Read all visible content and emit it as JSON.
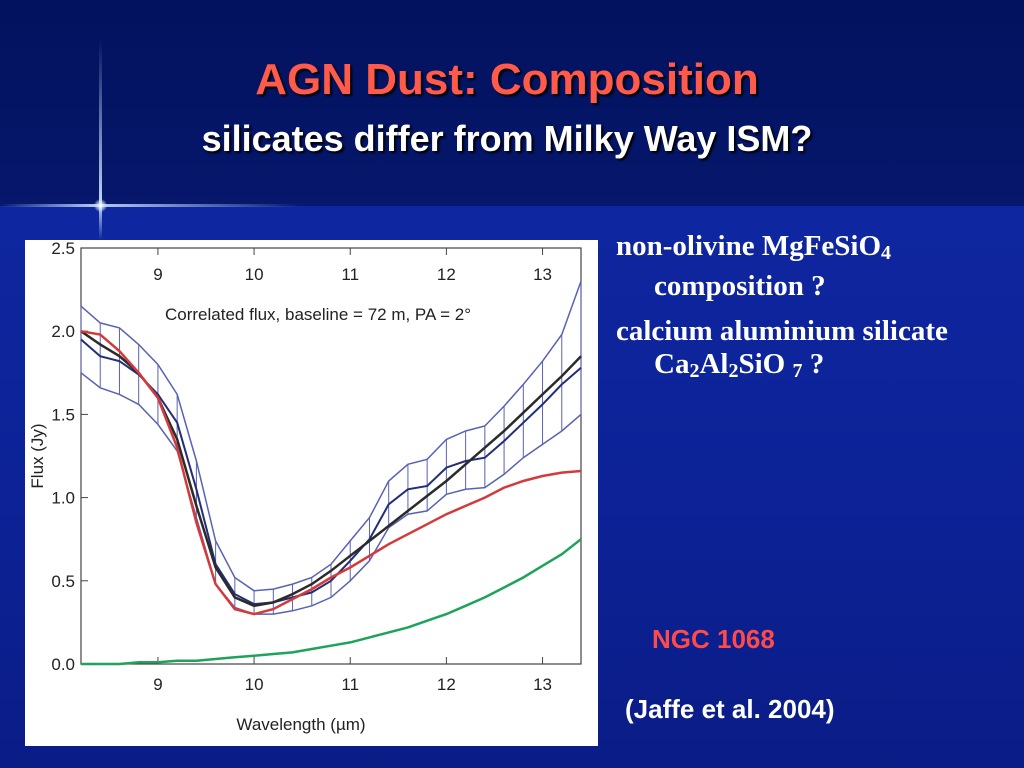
{
  "slide": {
    "title": "AGN Dust: Composition",
    "subtitle": "silicates differ from Milky Way ISM?",
    "bullets": [
      {
        "parts": [
          "non-olivine MgFeSiO",
          "4",
          " composition ?"
        ]
      },
      {
        "parts": [
          "calcium aluminium silicate Ca",
          "2",
          "Al",
          "2",
          "SiO ",
          "7",
          " ?"
        ]
      }
    ],
    "object_label": "NGC 1068",
    "citation": "(Jaffe et al. 2004)"
  },
  "chart_data": {
    "type": "line",
    "annotation": "Correlated flux, baseline = 72 m, PA = 2°",
    "xlabel": "Wavelength (µm)",
    "ylabel": "Flux (Jy)",
    "xlim": [
      8.2,
      13.4
    ],
    "ylim": [
      0.0,
      2.5
    ],
    "x_ticks": [
      9,
      10,
      11,
      12,
      13
    ],
    "y_ticks": [
      "0.0",
      "0.5",
      "1.0",
      "1.5",
      "2.0",
      "2.5"
    ],
    "x_tick_labels": [
      "9",
      "10",
      "11",
      "12",
      "13"
    ],
    "grid": false,
    "colors": {
      "data": "#232d7a",
      "band": "#5862b4",
      "model_fit": "#2b2b2b",
      "red_model": "#d53a3a",
      "green_model": "#1ea35a"
    },
    "series": [
      {
        "role": "data",
        "x": [
          8.2,
          8.4,
          8.6,
          8.8,
          9.0,
          9.2,
          9.4,
          9.6,
          9.8,
          10.0,
          10.2,
          10.4,
          10.6,
          10.8,
          11.0,
          11.2,
          11.4,
          11.6,
          11.8,
          12.0,
          12.2,
          12.4,
          12.6,
          12.8,
          13.0,
          13.2,
          13.4
        ],
        "values": [
          1.95,
          1.85,
          1.82,
          1.74,
          1.62,
          1.45,
          1.05,
          0.6,
          0.42,
          0.36,
          0.37,
          0.4,
          0.43,
          0.5,
          0.62,
          0.75,
          0.96,
          1.05,
          1.07,
          1.18,
          1.22,
          1.24,
          1.34,
          1.45,
          1.56,
          1.68,
          1.78
        ]
      },
      {
        "role": "data-upper",
        "x": [
          8.2,
          8.4,
          8.6,
          8.8,
          9.0,
          9.2,
          9.4,
          9.6,
          9.8,
          10.0,
          10.2,
          10.4,
          10.6,
          10.8,
          11.0,
          11.2,
          11.4,
          11.6,
          11.8,
          12.0,
          12.2,
          12.4,
          12.6,
          12.8,
          13.0,
          13.2,
          13.4
        ],
        "values": [
          2.15,
          2.05,
          2.02,
          1.92,
          1.8,
          1.62,
          1.22,
          0.74,
          0.52,
          0.44,
          0.45,
          0.48,
          0.52,
          0.6,
          0.74,
          0.88,
          1.1,
          1.2,
          1.23,
          1.35,
          1.4,
          1.43,
          1.55,
          1.68,
          1.82,
          1.98,
          2.3
        ]
      },
      {
        "role": "data-lower",
        "x": [
          8.2,
          8.4,
          8.6,
          8.8,
          9.0,
          9.2,
          9.4,
          9.6,
          9.8,
          10.0,
          10.2,
          10.4,
          10.6,
          10.8,
          11.0,
          11.2,
          11.4,
          11.6,
          11.8,
          12.0,
          12.2,
          12.4,
          12.6,
          12.8,
          13.0,
          13.2,
          13.4
        ],
        "values": [
          1.75,
          1.66,
          1.62,
          1.56,
          1.44,
          1.28,
          0.88,
          0.48,
          0.34,
          0.3,
          0.3,
          0.32,
          0.35,
          0.4,
          0.5,
          0.62,
          0.82,
          0.9,
          0.92,
          1.02,
          1.05,
          1.06,
          1.14,
          1.24,
          1.32,
          1.4,
          1.5
        ]
      },
      {
        "role": "model-fit",
        "x": [
          8.2,
          8.4,
          8.6,
          8.8,
          9.0,
          9.2,
          9.4,
          9.6,
          9.8,
          10.0,
          10.2,
          10.4,
          10.6,
          10.8,
          11.0,
          11.2,
          11.4,
          11.6,
          11.8,
          12.0,
          12.2,
          12.4,
          12.6,
          12.8,
          13.0,
          13.2,
          13.4
        ],
        "values": [
          2.0,
          1.92,
          1.85,
          1.75,
          1.6,
          1.35,
          0.95,
          0.58,
          0.4,
          0.35,
          0.37,
          0.42,
          0.48,
          0.56,
          0.65,
          0.74,
          0.83,
          0.92,
          1.01,
          1.1,
          1.2,
          1.3,
          1.4,
          1.51,
          1.62,
          1.73,
          1.85
        ]
      },
      {
        "role": "red-model",
        "x": [
          8.2,
          8.4,
          8.6,
          8.8,
          9.0,
          9.2,
          9.4,
          9.6,
          9.8,
          10.0,
          10.2,
          10.4,
          10.6,
          10.8,
          11.0,
          11.2,
          11.4,
          11.6,
          11.8,
          12.0,
          12.2,
          12.4,
          12.6,
          12.8,
          13.0,
          13.2,
          13.4
        ],
        "values": [
          2.0,
          1.98,
          1.88,
          1.75,
          1.6,
          1.3,
          0.85,
          0.48,
          0.33,
          0.3,
          0.33,
          0.39,
          0.45,
          0.52,
          0.58,
          0.65,
          0.72,
          0.78,
          0.84,
          0.9,
          0.95,
          1.0,
          1.06,
          1.1,
          1.13,
          1.15,
          1.16
        ]
      },
      {
        "role": "green-model",
        "x": [
          8.2,
          8.4,
          8.6,
          8.8,
          9.0,
          9.2,
          9.4,
          9.6,
          9.8,
          10.0,
          10.2,
          10.4,
          10.6,
          10.8,
          11.0,
          11.2,
          11.4,
          11.6,
          11.8,
          12.0,
          12.2,
          12.4,
          12.6,
          12.8,
          13.0,
          13.2,
          13.4
        ],
        "values": [
          0.0,
          0.0,
          0.0,
          0.01,
          0.01,
          0.02,
          0.02,
          0.03,
          0.04,
          0.05,
          0.06,
          0.07,
          0.09,
          0.11,
          0.13,
          0.16,
          0.19,
          0.22,
          0.26,
          0.3,
          0.35,
          0.4,
          0.46,
          0.52,
          0.59,
          0.66,
          0.75
        ]
      }
    ]
  }
}
